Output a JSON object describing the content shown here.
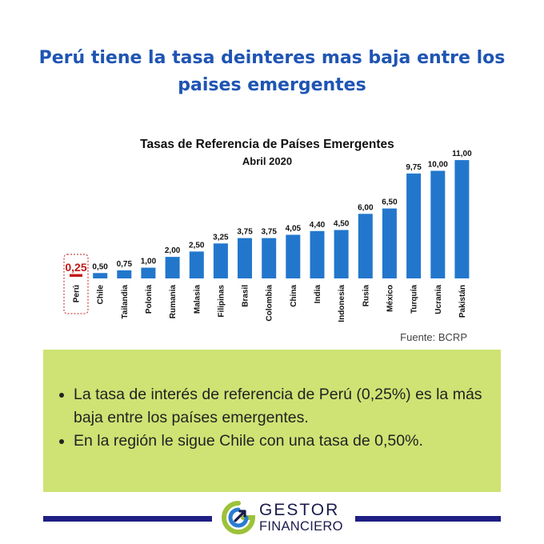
{
  "headline": "Perú tiene la tasa deinteres mas baja entre los paises emergentes",
  "chart_data": {
    "type": "bar",
    "title": "Tasas de Referencia de Países Emergentes",
    "subtitle": "Abril 2020",
    "categories": [
      "Perú",
      "Chile",
      "Tailandia",
      "Polonia",
      "Rumania",
      "Malasia",
      "Filipinas",
      "Brasil",
      "Colombia",
      "China",
      "India",
      "Indonesia",
      "Rusia",
      "México",
      "Turquía",
      "Ucrania",
      "Pakistán"
    ],
    "values": [
      0.25,
      0.5,
      0.75,
      1.0,
      2.0,
      2.5,
      3.25,
      3.75,
      3.75,
      4.05,
      4.4,
      4.5,
      6.0,
      6.5,
      9.75,
      10.0,
      11.0
    ],
    "value_labels": [
      "0,25",
      "0,50",
      "0,75",
      "1,00",
      "2,00",
      "2,50",
      "3,25",
      "3,75",
      "3,75",
      "4,05",
      "4,40",
      "4,50",
      "6,00",
      "6,50",
      "9,75",
      "10,00",
      "11,00"
    ],
    "highlight_category": "Perú",
    "bar_color": "#2277cc",
    "highlight_color": "#c21818",
    "grid": false
  },
  "source": "Fuente: BCRP",
  "summary": [
    "La tasa de interés de referencia de Perú (0,25%) es la más baja entre los países emergentes.",
    "En la región le sigue Chile con una tasa de 0,50%."
  ],
  "logo": {
    "line1": "GESTOR",
    "line2": "FINANCIERO",
    "colors": {
      "dark": "#1b1b4d",
      "green": "#9cc23a",
      "blue": "#2a7bd1"
    }
  }
}
